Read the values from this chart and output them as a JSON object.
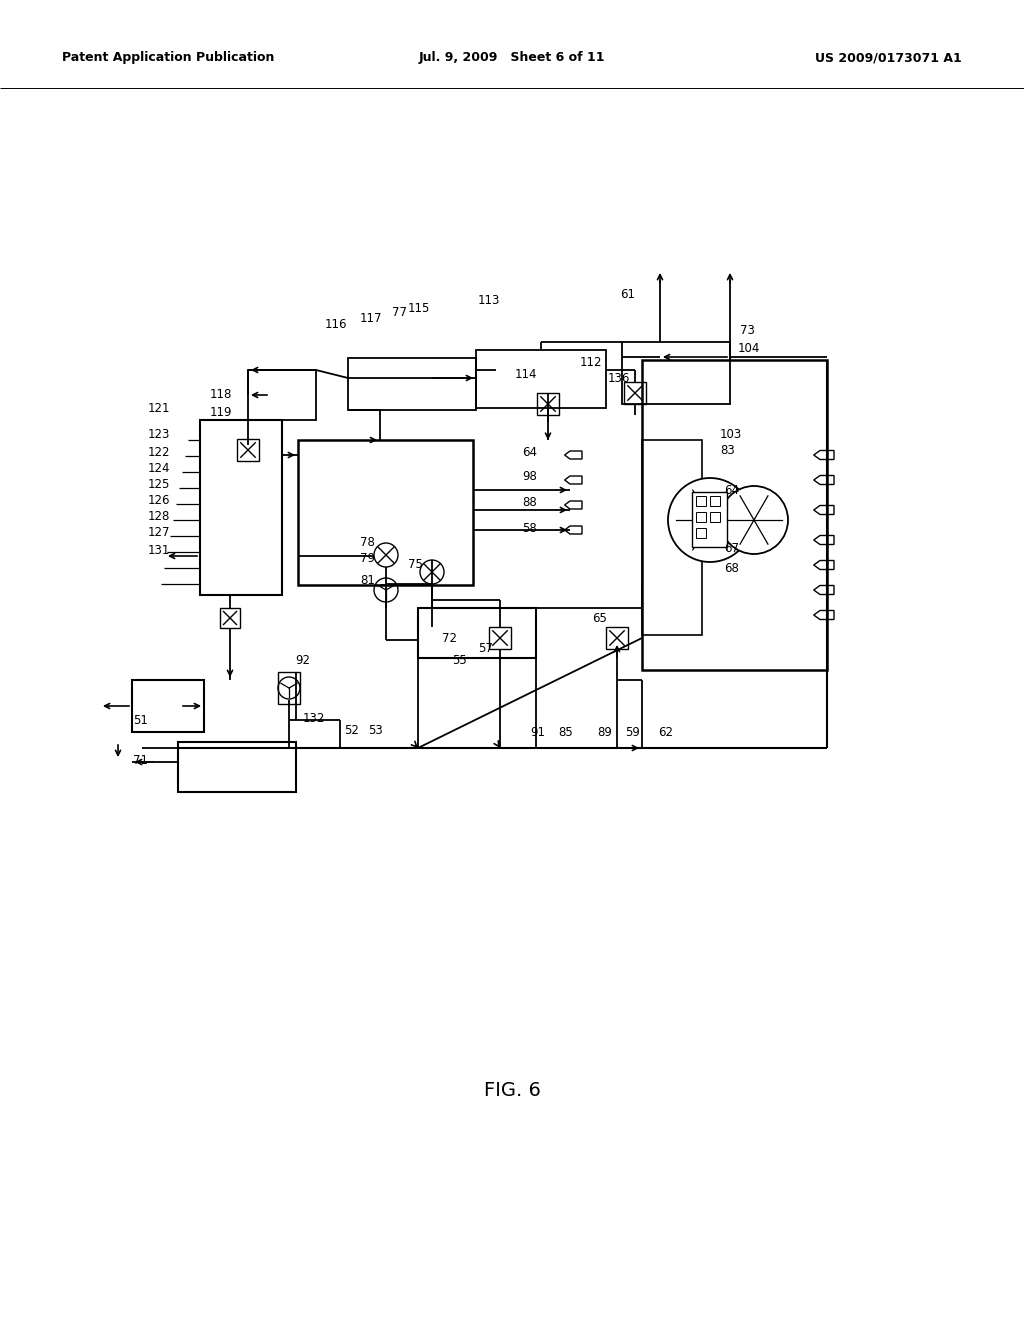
{
  "header_left": "Patent Application Publication",
  "header_center": "Jul. 9, 2009   Sheet 6 of 11",
  "header_right": "US 2009/0173071 A1",
  "figure_label": "FIG. 6",
  "bg_color": "#ffffff",
  "fig_width": 10.24,
  "fig_height": 13.2,
  "dpi": 100,
  "diagram": {
    "comment": "All coordinates in data-space 0..1024 x 0..1320, y-down"
  }
}
